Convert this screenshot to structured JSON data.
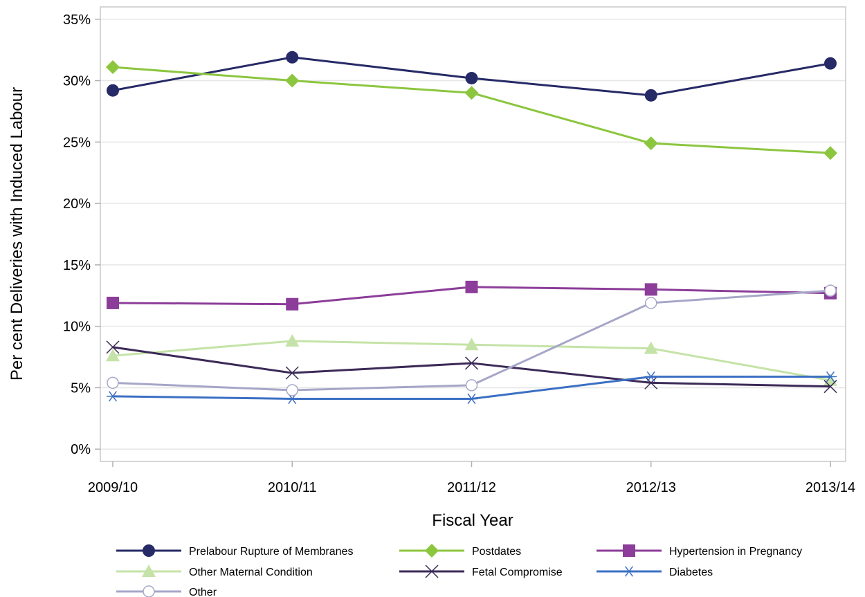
{
  "chart_data": {
    "type": "line",
    "xlabel": "Fiscal Year",
    "ylabel": "Per cent Deliveries with Induced Labour",
    "categories": [
      "2009/10",
      "2010/11",
      "2011/12",
      "2012/13",
      "2013/14"
    ],
    "y_ticks": [
      "0%",
      "5%",
      "10%",
      "15%",
      "20%",
      "25%",
      "30%",
      "35%"
    ],
    "y_tick_values": [
      0,
      5,
      10,
      15,
      20,
      25,
      30,
      35
    ],
    "ylim": [
      -1,
      36
    ],
    "grid": "horizontal",
    "legend_position": "bottom",
    "series": [
      {
        "name": "Prelabour Rupture of Membranes",
        "values": [
          29.2,
          31.9,
          30.2,
          28.8,
          31.4
        ],
        "color": "#262a66",
        "marker": "circle"
      },
      {
        "name": "Postdates",
        "values": [
          31.1,
          30.0,
          29.0,
          24.9,
          24.1
        ],
        "color": "#8cc63f",
        "marker": "diamond"
      },
      {
        "name": "Hypertension in Pregnancy",
        "values": [
          11.9,
          11.8,
          13.2,
          13.0,
          12.7
        ],
        "color": "#8c3d99",
        "marker": "square"
      },
      {
        "name": "Other Maternal Condition",
        "values": [
          7.6,
          8.8,
          8.5,
          8.2,
          5.6
        ],
        "color": "#c5e3a8",
        "marker": "triangle"
      },
      {
        "name": "Fetal Compromise",
        "values": [
          8.3,
          6.2,
          7.0,
          5.4,
          5.1
        ],
        "color": "#3b2a57",
        "marker": "x"
      },
      {
        "name": "Diabetes",
        "values": [
          4.3,
          4.1,
          4.1,
          5.9,
          5.9
        ],
        "color": "#3b6fc4",
        "marker": "asterisk"
      },
      {
        "name": "Other",
        "values": [
          5.4,
          4.8,
          5.2,
          11.9,
          12.9
        ],
        "color": "#a6a6c8",
        "marker": "open-circle"
      }
    ]
  }
}
